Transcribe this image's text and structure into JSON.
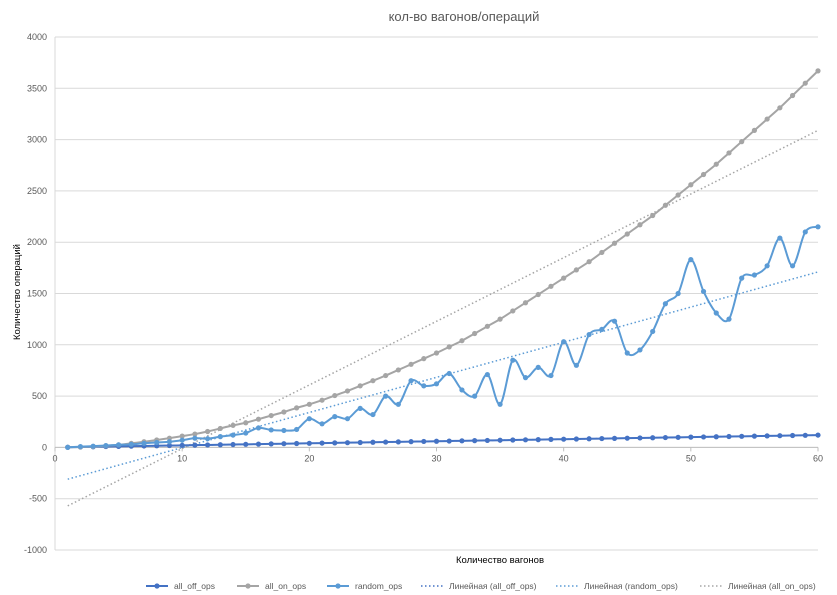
{
  "chart_data": {
    "type": "scatter",
    "title": "кол-во вагонов/операций",
    "xlabel": "Количество вагонов",
    "ylabel": "Количество операций",
    "xlim": [
      0,
      60
    ],
    "ylim": [
      -1000,
      4000
    ],
    "xticks": [
      0,
      10,
      20,
      30,
      40,
      50,
      60
    ],
    "yticks": [
      -1000,
      -500,
      0,
      500,
      1000,
      1500,
      2000,
      2500,
      3000,
      3500,
      4000
    ],
    "grid": "horizontal",
    "legend_position": "bottom",
    "x": [
      1,
      2,
      3,
      4,
      5,
      6,
      7,
      8,
      9,
      10,
      11,
      12,
      13,
      14,
      15,
      16,
      17,
      18,
      19,
      20,
      21,
      22,
      23,
      24,
      25,
      26,
      27,
      28,
      29,
      30,
      31,
      32,
      33,
      34,
      35,
      36,
      37,
      38,
      39,
      40,
      41,
      42,
      43,
      44,
      45,
      46,
      47,
      48,
      49,
      50,
      51,
      52,
      53,
      54,
      55,
      56,
      57,
      58,
      59,
      60
    ],
    "series": [
      {
        "name": "all_off_ops",
        "color": "#4472C4",
        "style": "smooth-line-markers",
        "values": [
          2,
          4,
          6,
          8,
          10,
          12,
          14,
          16,
          18,
          20,
          22,
          24,
          26,
          28,
          30,
          32,
          34,
          36,
          38,
          40,
          42,
          44,
          46,
          48,
          50,
          52,
          54,
          56,
          58,
          60,
          62,
          64,
          66,
          68,
          70,
          72,
          74,
          76,
          78,
          80,
          82,
          84,
          86,
          88,
          90,
          92,
          94,
          96,
          98,
          100,
          102,
          104,
          106,
          108,
          110,
          112,
          114,
          116,
          118,
          120
        ]
      },
      {
        "name": "all_on_ops",
        "color": "#A5A5A5",
        "style": "smooth-line-markers",
        "values": [
          1,
          4,
          9,
          16,
          25,
          40,
          55,
          72,
          90,
          110,
          130,
          155,
          185,
          215,
          240,
          275,
          310,
          345,
          385,
          420,
          460,
          505,
          550,
          600,
          650,
          700,
          755,
          810,
          865,
          920,
          980,
          1040,
          1110,
          1180,
          1250,
          1330,
          1410,
          1490,
          1570,
          1650,
          1730,
          1810,
          1900,
          1990,
          2080,
          2170,
          2260,
          2360,
          2460,
          2560,
          2660,
          2760,
          2870,
          2980,
          3090,
          3200,
          3310,
          3430,
          3550,
          3670
        ]
      },
      {
        "name": "random_ops",
        "color": "#5B9BD5",
        "style": "smooth-line-markers",
        "values": [
          0,
          8,
          12,
          18,
          25,
          30,
          40,
          48,
          55,
          70,
          90,
          85,
          105,
          120,
          140,
          190,
          170,
          165,
          175,
          280,
          230,
          300,
          280,
          380,
          320,
          500,
          420,
          650,
          600,
          620,
          720,
          560,
          500,
          710,
          420,
          850,
          680,
          780,
          700,
          1030,
          800,
          1100,
          1150,
          1230,
          920,
          950,
          1130,
          1400,
          1500,
          1830,
          1520,
          1310,
          1250,
          1650,
          1680,
          1770,
          2040,
          1770,
          2100,
          2150
        ]
      },
      {
        "name": "Линейная (all_off_ops)",
        "color": "#4472C4",
        "style": "dotted-trendline",
        "values": [
          2,
          120
        ]
      },
      {
        "name": "Линейная (random_ops)",
        "color": "#5B9BD5",
        "style": "dotted-trendline",
        "values": [
          -310,
          1710
        ]
      },
      {
        "name": "Линейная (all_on_ops)",
        "color": "#A5A5A5",
        "style": "dotted-trendline",
        "values": [
          -570,
          3090
        ]
      }
    ]
  }
}
